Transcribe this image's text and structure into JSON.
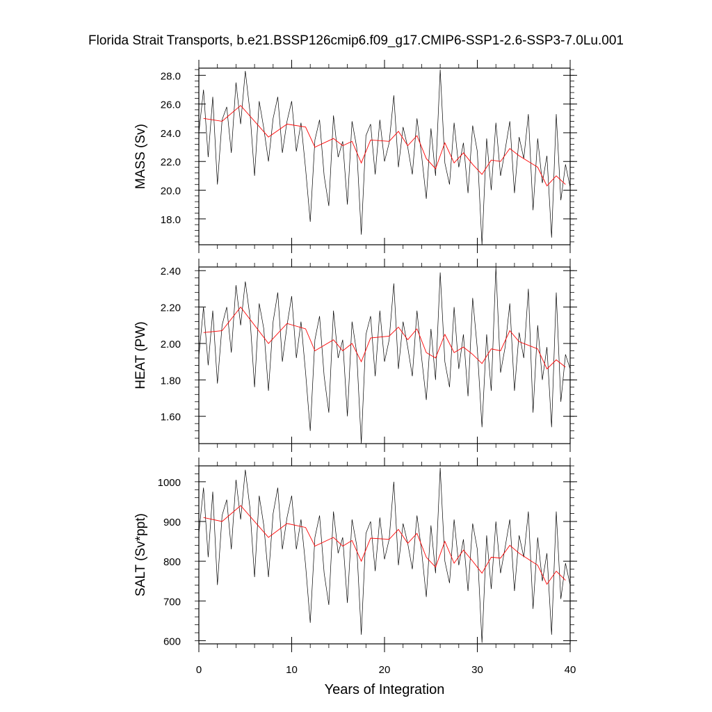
{
  "title": "Florida Strait Transports, b.e21.BSSP126cmip6.f09_g17.CMIP6-SSP1-2.6-SSP3-7.0Lu.001",
  "colors": {
    "monthly_series": "#000000",
    "annual_series": "#ff0000",
    "frame": "#000000",
    "background": "#ffffff"
  },
  "chart_data": [
    {
      "type": "line",
      "ylabel": "MASS (Sv)",
      "xlabel": "",
      "xlim": [
        0,
        40
      ],
      "ylim": [
        16.2,
        28.5
      ],
      "yticks": [
        18.0,
        20.0,
        22.0,
        24.0,
        26.0,
        28.0
      ],
      "ytick_labels": [
        "18.0",
        "20.0",
        "22.0",
        "24.0",
        "26.0",
        "28.0"
      ],
      "xticks": [
        0,
        10,
        20,
        30,
        40
      ],
      "grid": false,
      "series": [
        {
          "style": "monthly",
          "color": "#000000",
          "x": [
            0.0,
            0.5,
            1.0,
            1.5,
            2.0,
            2.5,
            3.0,
            3.5,
            4.0,
            4.5,
            5.0,
            5.5,
            6.0,
            6.5,
            7.0,
            7.5,
            8.0,
            8.5,
            9.0,
            9.5,
            10.0,
            10.5,
            11.0,
            11.5,
            12.0,
            12.5,
            13.0,
            13.5,
            14.0,
            14.5,
            15.0,
            15.5,
            16.0,
            16.5,
            17.0,
            17.5,
            18.0,
            18.5,
            19.0,
            19.5,
            20.0,
            20.5,
            21.0,
            21.5,
            22.0,
            22.5,
            23.0,
            23.5,
            24.0,
            24.5,
            25.0,
            25.5,
            26.0,
            26.5,
            27.0,
            27.5,
            28.0,
            28.5,
            29.0,
            29.5,
            30.0,
            30.5,
            31.0,
            31.5,
            32.0,
            32.5,
            33.0,
            33.5,
            34.0,
            34.5,
            35.0,
            35.5,
            36.0,
            36.5,
            37.0,
            37.5,
            38.0,
            38.5,
            39.0,
            39.5,
            40.0
          ],
          "y": [
            24.0,
            27.0,
            22.3,
            26.5,
            20.4,
            24.9,
            25.8,
            22.6,
            27.5,
            24.6,
            28.3,
            25.5,
            21.0,
            26.2,
            24.3,
            22.0,
            25.0,
            26.5,
            22.6,
            24.8,
            26.2,
            22.7,
            24.7,
            21.5,
            17.8,
            23.5,
            24.9,
            21.0,
            18.9,
            25.2,
            22.3,
            23.4,
            19.0,
            24.8,
            23.0,
            16.9,
            23.8,
            24.6,
            21.1,
            24.9,
            22.0,
            23.3,
            26.6,
            21.6,
            24.4,
            23.0,
            21.1,
            25.0,
            22.4,
            19.4,
            24.3,
            21.0,
            28.4,
            21.9,
            20.4,
            24.7,
            21.6,
            23.3,
            19.8,
            24.5,
            22.7,
            16.2,
            23.6,
            20.0,
            24.7,
            21.0,
            22.8,
            24.8,
            19.8,
            23.7,
            22.2,
            25.3,
            18.6,
            23.6,
            20.5,
            22.4,
            16.7,
            25.3,
            19.3,
            21.8,
            20.2
          ]
        },
        {
          "style": "annual",
          "color": "#ff0000",
          "x": [
            0.5,
            2.5,
            4.5,
            7.5,
            9.5,
            11.5,
            12.5,
            14.5,
            15.5,
            16.5,
            17.5,
            18.5,
            20.5,
            21.5,
            22.5,
            23.5,
            24.5,
            25.5,
            26.5,
            27.5,
            28.5,
            29.5,
            30.5,
            31.5,
            32.5,
            33.5,
            34.5,
            35.5,
            36.5,
            37.5,
            38.5,
            39.5
          ],
          "y": [
            25.0,
            24.8,
            25.9,
            23.7,
            24.6,
            24.4,
            23.0,
            23.6,
            23.1,
            23.4,
            21.9,
            23.5,
            23.4,
            24.1,
            23.1,
            23.8,
            22.2,
            21.5,
            23.3,
            21.9,
            22.6,
            21.8,
            21.1,
            22.1,
            22.0,
            22.9,
            22.4,
            22.0,
            21.6,
            20.3,
            21.0,
            20.4
          ]
        }
      ]
    },
    {
      "type": "line",
      "ylabel": "HEAT (PW)",
      "xlabel": "",
      "xlim": [
        0,
        40
      ],
      "ylim": [
        1.45,
        2.42
      ],
      "yticks": [
        1.6,
        1.8,
        2.0,
        2.2,
        2.4
      ],
      "ytick_labels": [
        "1.60",
        "1.80",
        "2.00",
        "2.20",
        "2.40"
      ],
      "xticks": [
        0,
        10,
        20,
        30,
        40
      ],
      "grid": false,
      "series": [
        {
          "style": "monthly",
          "color": "#000000",
          "x": [
            0.0,
            0.5,
            1.0,
            1.5,
            2.0,
            2.5,
            3.0,
            3.5,
            4.0,
            4.5,
            5.0,
            5.5,
            6.0,
            6.5,
            7.0,
            7.5,
            8.0,
            8.5,
            9.0,
            9.5,
            10.0,
            10.5,
            11.0,
            11.5,
            12.0,
            12.5,
            13.0,
            13.5,
            14.0,
            14.5,
            15.0,
            15.5,
            16.0,
            16.5,
            17.0,
            17.5,
            18.0,
            18.5,
            19.0,
            19.5,
            20.0,
            20.5,
            21.0,
            21.5,
            22.0,
            22.5,
            23.0,
            23.5,
            24.0,
            24.5,
            25.0,
            25.5,
            26.0,
            26.5,
            27.0,
            27.5,
            28.0,
            28.5,
            29.0,
            29.5,
            30.0,
            30.5,
            31.0,
            31.5,
            32.0,
            32.5,
            33.0,
            33.5,
            34.0,
            34.5,
            35.0,
            35.5,
            36.0,
            36.5,
            37.0,
            37.5,
            38.0,
            38.5,
            39.0,
            39.5,
            40.0
          ],
          "y": [
            1.93,
            2.2,
            1.88,
            2.18,
            1.78,
            2.1,
            2.2,
            1.95,
            2.32,
            2.1,
            2.34,
            2.15,
            1.76,
            2.22,
            2.08,
            1.74,
            2.12,
            2.28,
            1.9,
            2.1,
            2.26,
            1.92,
            2.12,
            1.84,
            1.52,
            2.02,
            2.15,
            1.82,
            1.62,
            2.18,
            1.92,
            2.02,
            1.6,
            2.12,
            1.95,
            1.45,
            2.05,
            2.15,
            1.82,
            2.18,
            1.9,
            2.02,
            2.33,
            1.86,
            2.12,
            1.98,
            1.82,
            2.18,
            1.92,
            1.69,
            2.08,
            1.8,
            2.39,
            1.9,
            1.76,
            2.2,
            1.86,
            2.05,
            1.71,
            2.25,
            1.97,
            1.54,
            2.05,
            1.74,
            2.42,
            1.84,
            1.98,
            2.22,
            1.74,
            2.06,
            1.92,
            2.3,
            1.62,
            2.1,
            1.8,
            1.98,
            1.54,
            2.28,
            1.68,
            1.94,
            1.86
          ]
        },
        {
          "style": "annual",
          "color": "#ff0000",
          "x": [
            0.5,
            2.5,
            4.5,
            7.5,
            9.5,
            11.5,
            12.5,
            14.5,
            15.5,
            16.5,
            17.5,
            18.5,
            20.5,
            21.5,
            22.5,
            23.5,
            24.5,
            25.5,
            26.5,
            27.5,
            28.5,
            29.5,
            30.5,
            31.5,
            32.5,
            33.5,
            34.5,
            35.5,
            36.5,
            37.5,
            38.5,
            39.5
          ],
          "y": [
            2.06,
            2.07,
            2.2,
            2.0,
            2.11,
            2.08,
            1.96,
            2.02,
            1.96,
            2.0,
            1.9,
            2.03,
            2.04,
            2.09,
            2.02,
            2.08,
            1.95,
            1.92,
            2.05,
            1.95,
            1.98,
            1.94,
            1.89,
            1.97,
            1.96,
            2.07,
            2.01,
            1.99,
            1.97,
            1.86,
            1.91,
            1.87
          ]
        }
      ]
    },
    {
      "type": "line",
      "ylabel": "SALT (Sv*ppt)",
      "xlabel": "Years of Integration",
      "xlim": [
        0,
        40
      ],
      "ylim": [
        592,
        1040
      ],
      "yticks": [
        600,
        700,
        800,
        900,
        1000
      ],
      "ytick_labels": [
        "600",
        "700",
        "800",
        "900",
        "1000"
      ],
      "xticks": [
        0,
        10,
        20,
        30,
        40
      ],
      "xtick_labels": [
        "0",
        "10",
        "20",
        "30",
        "40"
      ],
      "grid": false,
      "series": [
        {
          "style": "monthly",
          "color": "#000000",
          "x": [
            0.0,
            0.5,
            1.0,
            1.5,
            2.0,
            2.5,
            3.0,
            3.5,
            4.0,
            4.5,
            5.0,
            5.5,
            6.0,
            6.5,
            7.0,
            7.5,
            8.0,
            8.5,
            9.0,
            9.5,
            10.0,
            10.5,
            11.0,
            11.5,
            12.0,
            12.5,
            13.0,
            13.5,
            14.0,
            14.5,
            15.0,
            15.5,
            16.0,
            16.5,
            17.0,
            17.5,
            18.0,
            18.5,
            19.0,
            19.5,
            20.0,
            20.5,
            21.0,
            21.5,
            22.0,
            22.5,
            23.0,
            23.5,
            24.0,
            24.5,
            25.0,
            25.5,
            26.0,
            26.5,
            27.0,
            27.5,
            28.0,
            28.5,
            29.0,
            29.5,
            30.0,
            30.5,
            31.0,
            31.5,
            32.0,
            32.5,
            33.0,
            33.5,
            34.0,
            34.5,
            35.0,
            35.5,
            36.0,
            36.5,
            37.0,
            37.5,
            38.0,
            38.5,
            39.0,
            39.5,
            40.0
          ],
          "y": [
            870,
            985,
            810,
            975,
            740,
            915,
            955,
            830,
            1005,
            905,
            1030,
            935,
            760,
            965,
            890,
            760,
            920,
            985,
            830,
            910,
            965,
            830,
            905,
            790,
            645,
            860,
            915,
            770,
            690,
            925,
            820,
            860,
            695,
            905,
            840,
            615,
            870,
            900,
            775,
            910,
            805,
            855,
            1000,
            790,
            895,
            845,
            780,
            915,
            825,
            710,
            890,
            770,
            1035,
            800,
            745,
            905,
            790,
            855,
            725,
            895,
            830,
            595,
            865,
            730,
            900,
            770,
            835,
            905,
            725,
            865,
            810,
            925,
            680,
            860,
            750,
            820,
            615,
            925,
            705,
            795,
            740
          ]
        },
        {
          "style": "annual",
          "color": "#ff0000",
          "x": [
            0.5,
            2.5,
            4.5,
            7.5,
            9.5,
            11.5,
            12.5,
            14.5,
            15.5,
            16.5,
            17.5,
            18.5,
            20.5,
            21.5,
            22.5,
            23.5,
            24.5,
            25.5,
            26.5,
            27.5,
            28.5,
            29.5,
            30.5,
            31.5,
            32.5,
            33.5,
            34.5,
            35.5,
            36.5,
            37.5,
            38.5,
            39.5
          ],
          "y": [
            910,
            900,
            940,
            860,
            895,
            885,
            838,
            860,
            838,
            852,
            800,
            858,
            855,
            880,
            845,
            870,
            810,
            785,
            850,
            795,
            828,
            800,
            770,
            810,
            808,
            840,
            820,
            805,
            790,
            742,
            775,
            752
          ]
        }
      ]
    }
  ]
}
